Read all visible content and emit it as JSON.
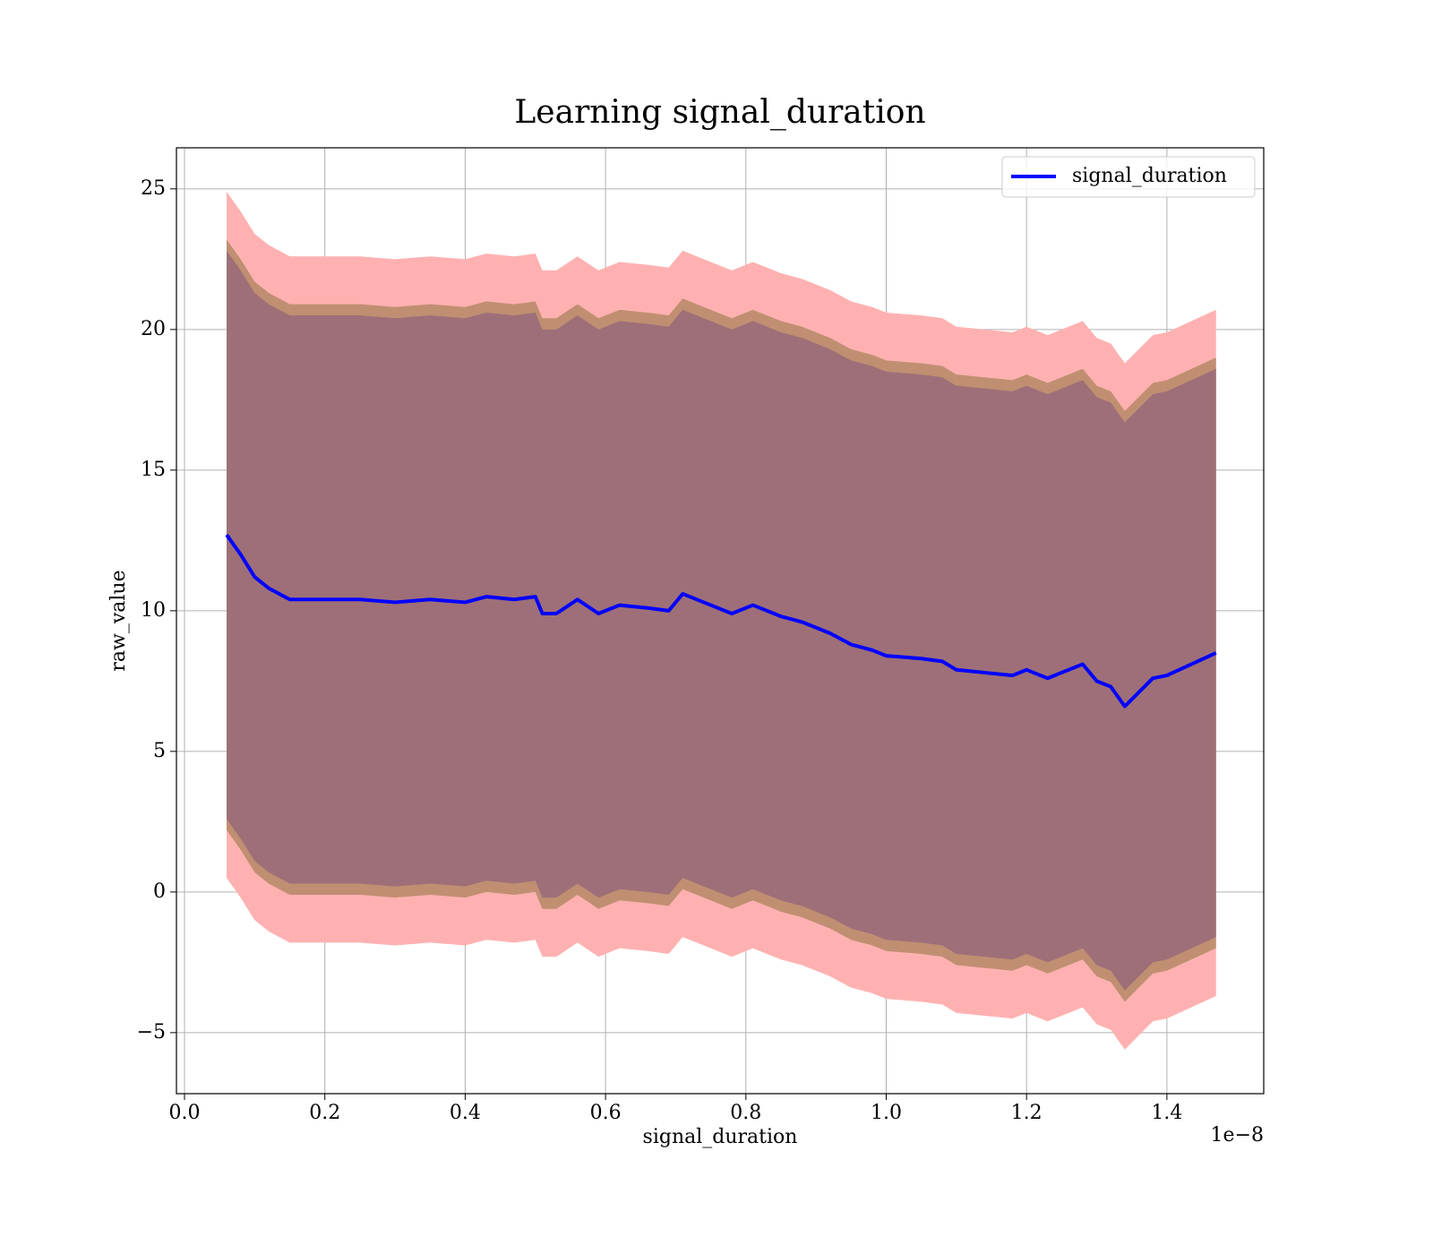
{
  "chart_data": {
    "type": "line",
    "title": "Learning signal_duration",
    "x_label": "signal_duration",
    "y_label": "raw_value",
    "x_offset_label": "1e−8",
    "legend": "upper right",
    "grid": true,
    "xlim": [
      -0.0115,
      1.538
    ],
    "ylim": [
      -7.17,
      26.46
    ],
    "xticks": [
      {
        "value": 0,
        "label": "0.0"
      },
      0.2,
      0.4,
      0.6,
      0.8,
      {
        "value": 1,
        "label": "1.0"
      },
      1.2,
      1.4
    ],
    "yticks": [
      {
        "value": -5,
        "label": "−5"
      },
      0,
      5,
      10,
      15,
      20,
      25
    ],
    "x": [
      0.06,
      0.08,
      0.1,
      0.12,
      0.15,
      0.2,
      0.25,
      0.3,
      0.35,
      0.4,
      0.43,
      0.47,
      0.5,
      0.51,
      0.53,
      0.56,
      0.59,
      0.62,
      0.66,
      0.69,
      0.71,
      0.74,
      0.78,
      0.81,
      0.85,
      0.88,
      0.92,
      0.95,
      0.98,
      1.0,
      1.05,
      1.08,
      1.1,
      1.14,
      1.18,
      1.2,
      1.23,
      1.25,
      1.28,
      1.3,
      1.32,
      1.34,
      1.38,
      1.4,
      1.47
    ],
    "series": [
      {
        "name": "signal_duration",
        "color": "#0000ff",
        "values": [
          12.7,
          12.0,
          11.2,
          10.8,
          10.4,
          10.4,
          10.4,
          10.3,
          10.4,
          10.3,
          10.5,
          10.4,
          10.5,
          9.9,
          9.9,
          10.4,
          9.9,
          10.2,
          10.1,
          10.0,
          10.6,
          10.3,
          9.9,
          10.2,
          9.8,
          9.6,
          9.2,
          8.8,
          8.6,
          8.4,
          8.3,
          8.2,
          7.9,
          7.8,
          7.7,
          7.9,
          7.6,
          7.8,
          8.1,
          7.5,
          7.3,
          6.6,
          7.6,
          7.7,
          8.5
        ]
      }
    ],
    "bands": [
      {
        "color": "#ffb1b1",
        "upper": [
          24.9,
          24.2,
          23.4,
          23.0,
          22.6,
          22.6,
          22.6,
          22.5,
          22.6,
          22.5,
          22.7,
          22.6,
          22.7,
          22.1,
          22.1,
          22.6,
          22.1,
          22.4,
          22.3,
          22.2,
          22.8,
          22.5,
          22.1,
          22.4,
          22.0,
          21.8,
          21.4,
          21.0,
          20.8,
          20.6,
          20.5,
          20.4,
          20.1,
          20.0,
          19.9,
          20.1,
          19.8,
          20.0,
          20.3,
          19.7,
          19.5,
          18.8,
          19.8,
          19.9,
          20.7
        ],
        "lower": [
          0.5,
          -0.2,
          -1.0,
          -1.4,
          -1.8,
          -1.8,
          -1.8,
          -1.9,
          -1.8,
          -1.9,
          -1.7,
          -1.8,
          -1.7,
          -2.3,
          -2.3,
          -1.8,
          -2.3,
          -2.0,
          -2.1,
          -2.2,
          -1.6,
          -1.9,
          -2.3,
          -2.0,
          -2.4,
          -2.6,
          -3.0,
          -3.4,
          -3.6,
          -3.8,
          -3.9,
          -4.0,
          -4.3,
          -4.4,
          -4.5,
          -4.3,
          -4.6,
          -4.4,
          -4.1,
          -4.7,
          -4.9,
          -5.6,
          -4.6,
          -4.5,
          -3.7
        ]
      },
      {
        "color": "#c08f72",
        "upper": [
          23.2,
          22.5,
          21.7,
          21.3,
          20.9,
          20.9,
          20.9,
          20.8,
          20.9,
          20.8,
          21.0,
          20.9,
          21.0,
          20.4,
          20.4,
          20.9,
          20.4,
          20.7,
          20.6,
          20.5,
          21.1,
          20.8,
          20.4,
          20.7,
          20.3,
          20.1,
          19.7,
          19.3,
          19.1,
          18.9,
          18.8,
          18.7,
          18.4,
          18.3,
          18.2,
          18.4,
          18.1,
          18.3,
          18.6,
          18.0,
          17.8,
          17.1,
          18.1,
          18.2,
          19.0
        ],
        "lower": [
          2.2,
          1.5,
          0.7,
          0.3,
          -0.1,
          -0.1,
          -0.1,
          -0.2,
          -0.1,
          -0.2,
          0.0,
          -0.1,
          0.0,
          -0.6,
          -0.6,
          -0.1,
          -0.6,
          -0.3,
          -0.4,
          -0.5,
          0.1,
          -0.2,
          -0.6,
          -0.3,
          -0.7,
          -0.9,
          -1.3,
          -1.7,
          -1.9,
          -2.1,
          -2.2,
          -2.3,
          -2.6,
          -2.7,
          -2.8,
          -2.6,
          -2.9,
          -2.7,
          -2.4,
          -3.0,
          -3.2,
          -3.9,
          -2.9,
          -2.8,
          -2.0
        ]
      },
      {
        "color": "#9e6f78",
        "upper": [
          22.8,
          22.1,
          21.3,
          20.9,
          20.5,
          20.5,
          20.5,
          20.4,
          20.5,
          20.4,
          20.6,
          20.5,
          20.6,
          20.0,
          20.0,
          20.5,
          20.0,
          20.3,
          20.2,
          20.1,
          20.7,
          20.4,
          20.0,
          20.3,
          19.9,
          19.7,
          19.3,
          18.9,
          18.7,
          18.5,
          18.4,
          18.3,
          18.0,
          17.9,
          17.8,
          18.0,
          17.7,
          17.9,
          18.2,
          17.6,
          17.4,
          16.7,
          17.7,
          17.8,
          18.6
        ],
        "lower": [
          2.6,
          1.9,
          1.1,
          0.7,
          0.3,
          0.3,
          0.3,
          0.2,
          0.3,
          0.2,
          0.4,
          0.3,
          0.4,
          -0.2,
          -0.2,
          0.3,
          -0.2,
          0.1,
          0.0,
          -0.1,
          0.5,
          0.2,
          -0.2,
          0.1,
          -0.3,
          -0.5,
          -0.9,
          -1.3,
          -1.5,
          -1.7,
          -1.8,
          -1.9,
          -2.2,
          -2.3,
          -2.4,
          -2.2,
          -2.5,
          -2.3,
          -2.0,
          -2.6,
          -2.8,
          -3.5,
          -2.5,
          -2.4,
          -1.6
        ]
      }
    ]
  }
}
